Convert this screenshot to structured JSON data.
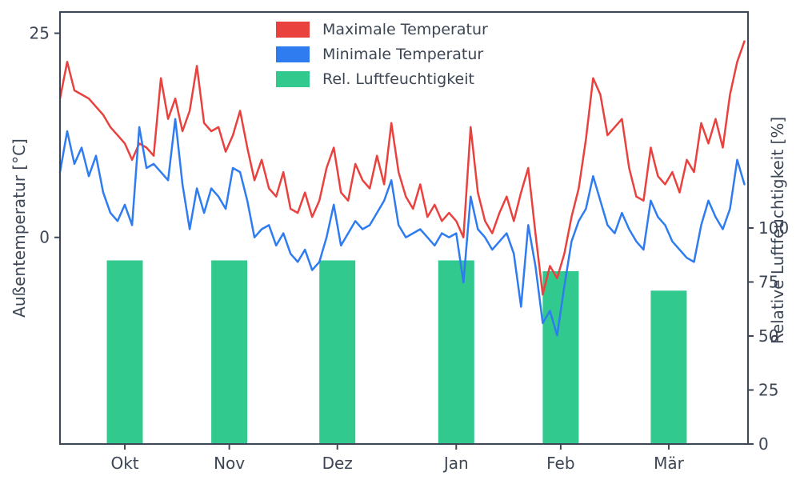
{
  "figure": {
    "background": "#ffffff",
    "axis_color": "#3d4654",
    "left_axis": {
      "label": "Außentemperatur [°C]",
      "ticks": [
        0,
        25
      ],
      "range": [
        -25.3,
        27.6
      ]
    },
    "right_axis": {
      "label": "Relative Luftfeuchtigkeit [%]",
      "ticks": [
        0,
        25,
        50,
        75,
        100
      ],
      "range": [
        0,
        200
      ]
    },
    "x_axis": {
      "tick_labels": [
        "Okt",
        "Nov",
        "Dez",
        "Jan",
        "Feb",
        "Mär"
      ],
      "tick_positions_days": [
        18,
        47,
        77,
        110,
        139,
        169
      ],
      "range_days": [
        0,
        191
      ]
    }
  },
  "legend": {
    "position": "upper-center",
    "entries": [
      {
        "label": "Maximale Temperatur",
        "color": "#e8413e"
      },
      {
        "label": "Minimale Temperatur",
        "color": "#2e7cf0"
      },
      {
        "label": "Rel. Luftfeuchtigkeit",
        "color": "#31c98e"
      }
    ]
  },
  "chart_data": {
    "type": "mixed",
    "title": "",
    "xlabel": "",
    "ylabel_left": "Außentemperatur [°C]",
    "ylabel_right": "Relative Luftfeuchtigkeit [%]",
    "x_unit": "days (mid-Sep to late-Mar)",
    "grid": false,
    "series": [
      {
        "name": "Maximale Temperatur",
        "type": "line",
        "color": "#e8413e",
        "axis": "left",
        "x_start_day": 0,
        "x_step_days": 2,
        "values": [
          17.0,
          21.5,
          18.0,
          17.5,
          17.0,
          16.0,
          15.0,
          13.5,
          12.5,
          11.5,
          9.5,
          11.5,
          11.0,
          10.0,
          19.5,
          14.5,
          17.0,
          13.0,
          15.5,
          21.0,
          14.0,
          13.0,
          13.5,
          10.5,
          12.5,
          15.5,
          11.0,
          7.0,
          9.5,
          6.0,
          5.0,
          8.0,
          3.5,
          3.0,
          5.5,
          2.5,
          4.5,
          8.5,
          11.0,
          5.5,
          4.5,
          9.0,
          7.0,
          6.0,
          10.0,
          6.5,
          14.0,
          8.0,
          5.0,
          3.5,
          6.5,
          2.5,
          4.0,
          2.0,
          3.0,
          2.0,
          0.0,
          13.5,
          5.5,
          2.0,
          0.5,
          3.0,
          5.0,
          2.0,
          5.5,
          8.5,
          0.5,
          -7.0,
          -3.5,
          -5.0,
          -2.0,
          2.5,
          6.0,
          12.0,
          19.5,
          17.5,
          12.5,
          13.5,
          14.5,
          8.5,
          5.0,
          4.5,
          11.0,
          7.5,
          6.5,
          8.0,
          5.5,
          9.5,
          8.0,
          14.0,
          11.5,
          14.5,
          11.0,
          17.5,
          21.5,
          24.0
        ]
      },
      {
        "name": "Minimale Temperatur",
        "type": "line",
        "color": "#2e7cf0",
        "axis": "left",
        "x_start_day": 0,
        "x_step_days": 2,
        "values": [
          8.0,
          13.0,
          9.0,
          11.0,
          7.5,
          10.0,
          5.5,
          3.0,
          2.0,
          4.0,
          1.5,
          13.5,
          8.5,
          9.0,
          8.0,
          7.0,
          14.5,
          6.5,
          1.0,
          6.0,
          3.0,
          6.0,
          5.0,
          3.5,
          8.5,
          8.0,
          4.5,
          0.0,
          1.0,
          1.5,
          -1.0,
          0.5,
          -2.0,
          -3.0,
          -1.5,
          -4.0,
          -3.0,
          0.0,
          4.0,
          -1.0,
          0.5,
          2.0,
          1.0,
          1.5,
          3.0,
          4.5,
          7.0,
          1.5,
          0.0,
          0.5,
          1.0,
          0.0,
          -1.0,
          0.5,
          0.0,
          0.5,
          -5.5,
          5.0,
          1.0,
          0.0,
          -1.5,
          -0.5,
          0.5,
          -2.0,
          -8.5,
          1.5,
          -3.5,
          -10.5,
          -9.0,
          -12.0,
          -6.0,
          -0.5,
          2.0,
          3.5,
          7.5,
          4.5,
          1.5,
          0.5,
          3.0,
          1.0,
          -0.5,
          -1.5,
          4.5,
          2.5,
          1.5,
          -0.5,
          -1.5,
          -2.5,
          -3.0,
          1.5,
          4.5,
          2.5,
          1.0,
          3.5,
          9.5,
          6.5
        ]
      },
      {
        "name": "Rel. Luftfeuchtigkeit",
        "type": "bar",
        "color": "#31c98e",
        "axis": "right",
        "categories": [
          "Okt",
          "Nov",
          "Dez",
          "Jan",
          "Feb",
          "Mär"
        ],
        "x_days": [
          18,
          47,
          77,
          110,
          139,
          169
        ],
        "bar_width_days": 10,
        "values": [
          85,
          85,
          85,
          85,
          80,
          71
        ]
      }
    ]
  }
}
